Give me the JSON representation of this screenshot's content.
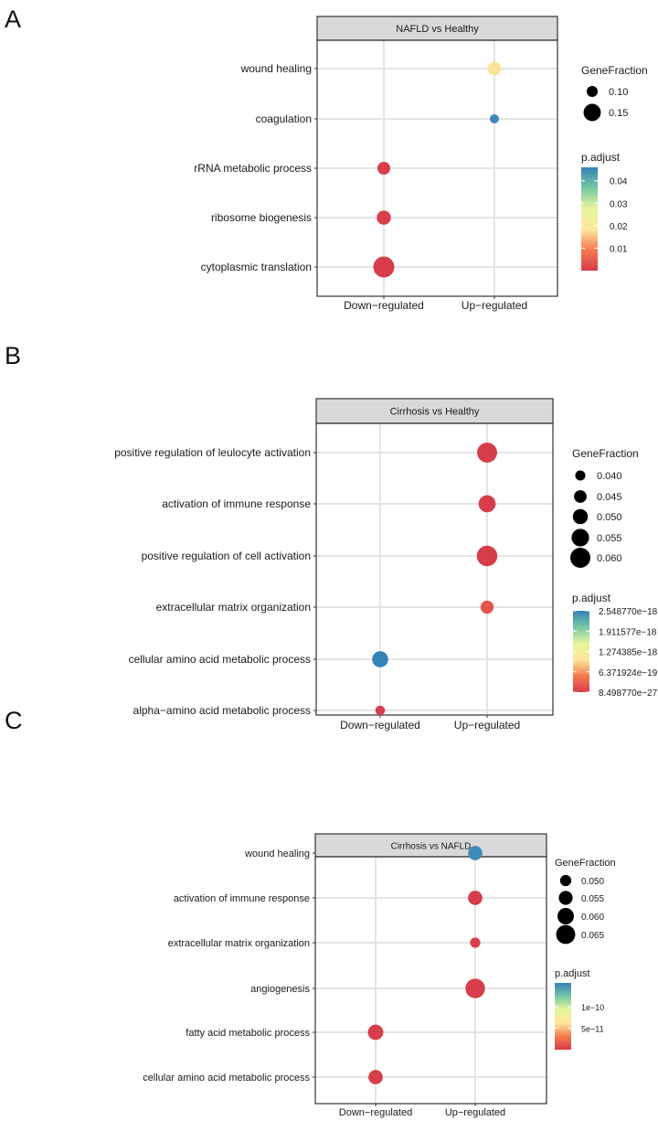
{
  "panels": [
    {
      "letter": "A",
      "chart_data": {
        "type": "scatter",
        "title": "NAFLD vs Healthy",
        "categories_x": [
          "Down−regulated",
          "Up−regulated"
        ],
        "categories_y": [
          "wound healing",
          "coagulation",
          "rRNA metabolic process",
          "ribosome biogenesis",
          "cytoplasmic translation"
        ],
        "points": [
          {
            "term": "wound healing",
            "group": "Up−regulated",
            "gene_fraction": 0.12,
            "p_adjust": 0.018
          },
          {
            "term": "coagulation",
            "group": "Up−regulated",
            "gene_fraction": 0.085,
            "p_adjust": 0.045
          },
          {
            "term": "rRNA metabolic process",
            "group": "Down−regulated",
            "gene_fraction": 0.115,
            "p_adjust": 0.0005
          },
          {
            "term": "ribosome biogenesis",
            "group": "Down−regulated",
            "gene_fraction": 0.125,
            "p_adjust": 0.0005
          },
          {
            "term": "cytoplasmic translation",
            "group": "Down−regulated",
            "gene_fraction": 0.18,
            "p_adjust": 0.0001
          }
        ],
        "size_legend": {
          "title": "GeneFraction",
          "values": [
            "0.10",
            "0.15"
          ],
          "numeric": [
            0.1,
            0.15
          ],
          "range": [
            0.085,
            0.18
          ]
        },
        "color_legend": {
          "title": "p.adjust",
          "ticks": [
            "0.04",
            "0.03",
            "0.02",
            "0.01"
          ],
          "tick_values": [
            0.04,
            0.03,
            0.02,
            0.01
          ],
          "range": [
            0,
            0.046
          ]
        },
        "legend_position": "right",
        "grid": true
      }
    },
    {
      "letter": "B",
      "chart_data": {
        "type": "scatter",
        "title": "Cirrhosis vs Healthy",
        "categories_x": [
          "Down−regulated",
          "Up−regulated"
        ],
        "categories_y": [
          "positive regulation of leulocyte activation",
          "activation of immune response",
          "positive regulation of cell activation",
          "extracellular matrix organization",
          "cellular amino acid metabolic process",
          "alpha−amino acid metabolic process"
        ],
        "points": [
          {
            "term": "positive regulation of leulocyte activation",
            "group": "Up−regulated",
            "gene_fraction": 0.06,
            "p_adjust": 1e-26
          },
          {
            "term": "activation of immune response",
            "group": "Up−regulated",
            "gene_fraction": 0.054,
            "p_adjust": 1e-26
          },
          {
            "term": "positive regulation of cell activation",
            "group": "Up−regulated",
            "gene_fraction": 0.061,
            "p_adjust": 1e-26
          },
          {
            "term": "extracellular matrix organization",
            "group": "Up−regulated",
            "gene_fraction": 0.046,
            "p_adjust": 2e-19
          },
          {
            "term": "cellular amino acid metabolic process",
            "group": "Down−regulated",
            "gene_fraction": 0.052,
            "p_adjust": 2.54877e-18
          },
          {
            "term": "alpha−amino acid metabolic process",
            "group": "Down−regulated",
            "gene_fraction": 0.039,
            "p_adjust": 8.49877e-27
          }
        ],
        "size_legend": {
          "title": "GeneFraction",
          "values": [
            "0.040",
            "0.045",
            "0.050",
            "0.055",
            "0.060"
          ],
          "numeric": [
            0.04,
            0.045,
            0.05,
            0.055,
            0.06
          ],
          "range": [
            0.038,
            0.062
          ]
        },
        "color_legend": {
          "title": "p.adjust",
          "ticks": [
            "2.548770e−18",
            "1.911577e−18",
            "1.274385e−18",
            "6.371924e−19",
            "8.498770e−27"
          ],
          "tick_values": [
            2.54877e-18,
            1.911577e-18,
            1.274385e-18,
            6.371924e-19,
            8.49877e-27
          ],
          "range": [
            8.49877e-27,
            2.54877e-18
          ]
        },
        "legend_position": "right",
        "grid": true
      }
    },
    {
      "letter": "C",
      "chart_data": {
        "type": "scatter",
        "title": "Cirrhosis vs NAFLD",
        "categories_x": [
          "Down−regulated",
          "Up−regulated"
        ],
        "categories_y": [
          "wound healing",
          "activation of immune response",
          "extracellular matrix organization",
          "angiogenesis",
          "fatty acid metabolic process",
          "cellular amino acid metabolic process"
        ],
        "points": [
          {
            "term": "wound healing",
            "group": "Up−regulated",
            "gene_fraction": 0.056,
            "p_adjust": 1.5e-10
          },
          {
            "term": "activation of immune response",
            "group": "Up−regulated",
            "gene_fraction": 0.056,
            "p_adjust": 5e-13
          },
          {
            "term": "extracellular matrix organization",
            "group": "Up−regulated",
            "gene_fraction": 0.048,
            "p_adjust": 5e-13
          },
          {
            "term": "angiogenesis",
            "group": "Up−regulated",
            "gene_fraction": 0.066,
            "p_adjust": 1e-12
          },
          {
            "term": "fatty acid metabolic process",
            "group": "Down−regulated",
            "gene_fraction": 0.058,
            "p_adjust": 1e-12
          },
          {
            "term": "cellular amino acid metabolic process",
            "group": "Down−regulated",
            "gene_fraction": 0.056,
            "p_adjust": 1e-12
          }
        ],
        "size_legend": {
          "title": "GeneFraction",
          "values": [
            "0.050",
            "0.055",
            "0.060",
            "0.065"
          ],
          "numeric": [
            0.05,
            0.055,
            0.06,
            0.065
          ],
          "range": [
            0.046,
            0.067
          ]
        },
        "color_legend": {
          "title": "p.adjust",
          "ticks": [
            "1e−10",
            "5e−11"
          ],
          "tick_values": [
            1e-10,
            5e-11
          ],
          "range": [
            0,
            1.55e-10
          ]
        },
        "legend_position": "right",
        "grid": true
      }
    }
  ],
  "colors": {
    "scale": [
      "#d73c4a",
      "#f57b4f",
      "#fde89a",
      "#e6f49b",
      "#76c8a4",
      "#3582b9"
    ],
    "panel_header_bg": "#d9d9d9",
    "grid": "#e4e4e4"
  }
}
